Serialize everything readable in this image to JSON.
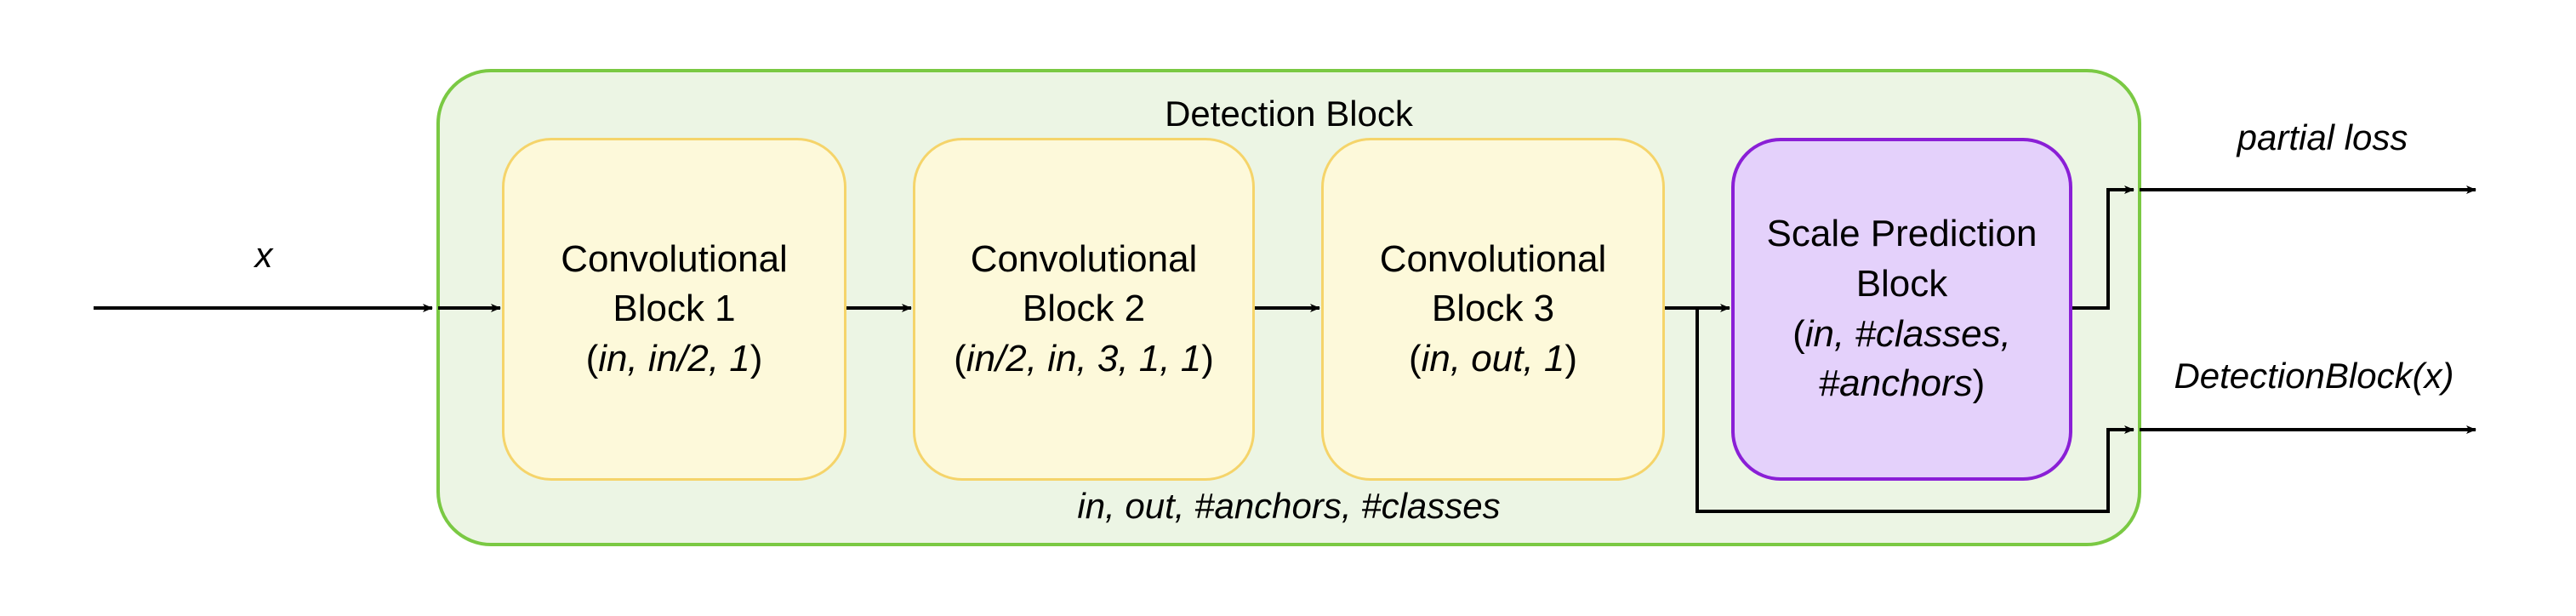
{
  "container": {
    "title": "Detection Block",
    "params": "in, out, #anchors, #classes"
  },
  "input_label": "x",
  "blocks": [
    {
      "line1": "Convolutional",
      "line2": "Block 1",
      "args": "in, in/2, 1"
    },
    {
      "line1": "Convolutional",
      "line2": "Block 2",
      "args": "in/2, in, 3, 1, 1"
    },
    {
      "line1": "Convolutional",
      "line2": "Block 3",
      "args": "in, out, 1"
    }
  ],
  "scale_block": {
    "line1": "Scale Prediction",
    "line2": "Block",
    "args_a": "in, #classes,",
    "args_b": "#anchors"
  },
  "outputs": {
    "top": "partial loss",
    "bottom": "DetectionBlock(x)"
  },
  "colors": {
    "container_fill": "#ecf5e4",
    "container_border": "#7ac943",
    "conv_fill": "#fdf9da",
    "conv_border": "#f5d46a",
    "scale_fill": "#e4d1fb",
    "scale_border": "#8a1fd6"
  }
}
